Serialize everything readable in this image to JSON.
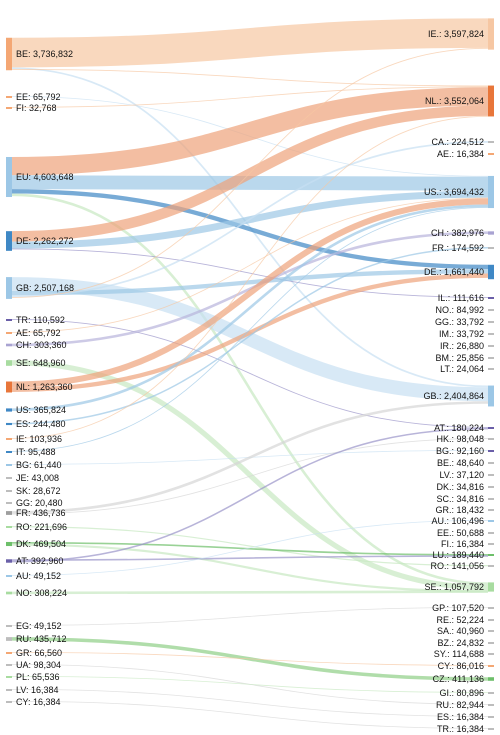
{
  "diagram": {
    "type": "sankey",
    "colors": {
      "orange": "#e8763a",
      "blue": "#3f88c5",
      "lightblue": "#9cc7e6",
      "green": "#6dbf6a",
      "purple": "#6a5fa8",
      "gray": "#bdbdbd",
      "peach": "#f6c7a3"
    },
    "sources": [
      {
        "id": "BE",
        "label": "BE: 3,736,832",
        "value": 3736832,
        "color": "#f4a774"
      },
      {
        "id": "EE",
        "label": "EE: 65,792",
        "value": 65792,
        "color": "#f4a774"
      },
      {
        "id": "FI",
        "label": "FI: 32,768",
        "value": 32768,
        "color": "#f4a774"
      },
      {
        "id": "EU",
        "label": "EU: 4,603,648",
        "value": 4603648,
        "color": "#9cc7e6"
      },
      {
        "id": "DE",
        "label": "DE: 2,262,272",
        "value": 2262272,
        "color": "#3f88c5"
      },
      {
        "id": "GB",
        "label": "GB: 2,507,168",
        "value": 2507168,
        "color": "#9cc7e6"
      },
      {
        "id": "TR",
        "label": "TR: 110,592",
        "value": 110592,
        "color": "#6a5fa8"
      },
      {
        "id": "AE",
        "label": "AE: 65,792",
        "value": 65792,
        "color": "#f4a774"
      },
      {
        "id": "CH",
        "label": "CH: 303,360",
        "value": 303360,
        "color": "#a9a3d2"
      },
      {
        "id": "SE",
        "label": "SE: 648,960",
        "value": 648960,
        "color": "#a8dca0"
      },
      {
        "id": "NL",
        "label": "NL: 1,263,360",
        "value": 1263360,
        "color": "#e8763a"
      },
      {
        "id": "US",
        "label": "US: 365,824",
        "value": 365824,
        "color": "#3f88c5"
      },
      {
        "id": "ES",
        "label": "ES: 244,480",
        "value": 244480,
        "color": "#3f88c5"
      },
      {
        "id": "IE",
        "label": "IE: 103,936",
        "value": 103936,
        "color": "#f4a774"
      },
      {
        "id": "IT",
        "label": "IT: 95,488",
        "value": 95488,
        "color": "#3f88c5"
      },
      {
        "id": "BG",
        "label": "BG: 61,440",
        "value": 61440,
        "color": "#9cc7e6"
      },
      {
        "id": "JE",
        "label": "JE: 43,008",
        "value": 43008,
        "color": "#bdbdbd"
      },
      {
        "id": "SK",
        "label": "SK: 28,672",
        "value": 28672,
        "color": "#bdbdbd"
      },
      {
        "id": "GG",
        "label": "GG: 20,480",
        "value": 20480,
        "color": "#bdbdbd"
      },
      {
        "id": "FR",
        "label": "FR: 436,736",
        "value": 436736,
        "color": "#9e9e9e"
      },
      {
        "id": "RO",
        "label": "RO: 221,696",
        "value": 221696,
        "color": "#a8dca0"
      },
      {
        "id": "DK",
        "label": "DK: 469,504",
        "value": 469504,
        "color": "#6dbf6a"
      },
      {
        "id": "AT",
        "label": "AT: 392,960",
        "value": 392960,
        "color": "#6a5fa8"
      },
      {
        "id": "AU",
        "label": "AU: 49,152",
        "value": 49152,
        "color": "#9cc7e6"
      },
      {
        "id": "NO",
        "label": "NO: 308,224",
        "value": 308224,
        "color": "#a8dca0"
      },
      {
        "id": "EG",
        "label": "EG: 49,152",
        "value": 49152,
        "color": "#bdbdbd"
      },
      {
        "id": "RU",
        "label": "RU: 435,712",
        "value": 435712,
        "color": "#bdbdbd"
      },
      {
        "id": "GR",
        "label": "GR: 66,560",
        "value": 66560,
        "color": "#f4a774"
      },
      {
        "id": "UA",
        "label": "UA: 98,304",
        "value": 98304,
        "color": "#bdbdbd"
      },
      {
        "id": "PL",
        "label": "PL: 65,536",
        "value": 65536,
        "color": "#a8dca0"
      },
      {
        "id": "LV",
        "label": "LV: 16,384",
        "value": 16384,
        "color": "#bdbdbd"
      },
      {
        "id": "CY",
        "label": "CY: 16,384",
        "value": 16384,
        "color": "#bdbdbd"
      }
    ],
    "targets": [
      {
        "id": "IE",
        "label": "IE.: 3,597,824",
        "value": 3597824,
        "color": "#f6c7a3"
      },
      {
        "id": "NL",
        "label": "NL.: 3,552,064",
        "value": 3552064,
        "color": "#e8763a"
      },
      {
        "id": "CA",
        "label": "CA.: 224,512",
        "value": 224512,
        "color": "#bdbdbd"
      },
      {
        "id": "AE",
        "label": "AE.: 16,384",
        "value": 16384,
        "color": "#f4a774"
      },
      {
        "id": "US",
        "label": "US.: 3,694,432",
        "value": 3694432,
        "color": "#9cc7e6"
      },
      {
        "id": "CH",
        "label": "CH.: 382,976",
        "value": 382976,
        "color": "#a9a3d2"
      },
      {
        "id": "FR",
        "label": "FR.: 174,592",
        "value": 174592,
        "color": "#bdbdbd"
      },
      {
        "id": "DE",
        "label": "DE.: 1,661,440",
        "value": 1661440,
        "color": "#3f88c5"
      },
      {
        "id": "IL",
        "label": "IL.: 111,616",
        "value": 111616,
        "color": "#6a5fa8"
      },
      {
        "id": "NO",
        "label": "NO.: 84,992",
        "value": 84992,
        "color": "#bdbdbd"
      },
      {
        "id": "GG",
        "label": "GG.: 33,792",
        "value": 33792,
        "color": "#bdbdbd"
      },
      {
        "id": "IM",
        "label": "IM.: 33,792",
        "value": 33792,
        "color": "#bdbdbd"
      },
      {
        "id": "IR",
        "label": "IR.: 26,880",
        "value": 26880,
        "color": "#bdbdbd"
      },
      {
        "id": "BM",
        "label": "BM.: 25,856",
        "value": 25856,
        "color": "#bdbdbd"
      },
      {
        "id": "LT",
        "label": "LT.: 24,064",
        "value": 24064,
        "color": "#bdbdbd"
      },
      {
        "id": "GB",
        "label": "GB.: 2,404,864",
        "value": 2404864,
        "color": "#9cc7e6"
      },
      {
        "id": "AT",
        "label": "AT.: 180,224",
        "value": 180224,
        "color": "#6a5fa8"
      },
      {
        "id": "HK",
        "label": "HK.: 98,048",
        "value": 98048,
        "color": "#bdbdbd"
      },
      {
        "id": "BG",
        "label": "BG.: 92,160",
        "value": 92160,
        "color": "#6a5fa8"
      },
      {
        "id": "BE",
        "label": "BE.: 48,640",
        "value": 48640,
        "color": "#bdbdbd"
      },
      {
        "id": "LV",
        "label": "LV.: 37,120",
        "value": 37120,
        "color": "#bdbdbd"
      },
      {
        "id": "DK",
        "label": "DK.: 34,816",
        "value": 34816,
        "color": "#bdbdbd"
      },
      {
        "id": "SC",
        "label": "SC.: 34,816",
        "value": 34816,
        "color": "#bdbdbd"
      },
      {
        "id": "GR",
        "label": "GR.: 18,432",
        "value": 18432,
        "color": "#bdbdbd"
      },
      {
        "id": "AU",
        "label": "AU.: 106,496",
        "value": 106496,
        "color": "#9cc7e6"
      },
      {
        "id": "EE",
        "label": "EE.: 50,688",
        "value": 50688,
        "color": "#bdbdbd"
      },
      {
        "id": "FI",
        "label": "FI.: 16,384",
        "value": 16384,
        "color": "#bdbdbd"
      },
      {
        "id": "LU",
        "label": "LU.: 189,440",
        "value": 189440,
        "color": "#6dbf6a"
      },
      {
        "id": "RO",
        "label": "RO.: 141,056",
        "value": 141056,
        "color": "#bdbdbd"
      },
      {
        "id": "SE",
        "label": "SE.: 1,057,792",
        "value": 1057792,
        "color": "#a8dca0"
      },
      {
        "id": "GP",
        "label": "GP.: 107,520",
        "value": 107520,
        "color": "#bdbdbd"
      },
      {
        "id": "RE",
        "label": "RE.: 52,224",
        "value": 52224,
        "color": "#bdbdbd"
      },
      {
        "id": "SA",
        "label": "SA.: 40,960",
        "value": 40960,
        "color": "#bdbdbd"
      },
      {
        "id": "BZ",
        "label": "BZ.: 24,832",
        "value": 24832,
        "color": "#bdbdbd"
      },
      {
        "id": "SY",
        "label": "SY.: 114,688",
        "value": 114688,
        "color": "#bdbdbd"
      },
      {
        "id": "CY",
        "label": "CY.: 86,016",
        "value": 86016,
        "color": "#f4a774"
      },
      {
        "id": "CZ",
        "label": "CZ.: 411,136",
        "value": 411136,
        "color": "#6dbf6a"
      },
      {
        "id": "GI",
        "label": "GI.: 80,896",
        "value": 80896,
        "color": "#bdbdbd"
      },
      {
        "id": "RU",
        "label": "RU.: 82,944",
        "value": 82944,
        "color": "#bdbdbd"
      },
      {
        "id": "ES",
        "label": "ES.: 16,384",
        "value": 16384,
        "color": "#bdbdbd"
      },
      {
        "id": "TR",
        "label": "TR.: 16,384",
        "value": 16384,
        "color": "#bdbdbd"
      }
    ],
    "links": [
      {
        "source": "BE",
        "target": "IE",
        "value": 3400000,
        "color": "#f6c7a3"
      },
      {
        "source": "BE",
        "target": "GB",
        "value": 200000,
        "color": "#c8e0f2"
      },
      {
        "source": "BE",
        "target": "NL",
        "value": 100000,
        "color": "#f6c7a3"
      },
      {
        "source": "EE",
        "target": "US",
        "value": 50000,
        "color": "#c8e0f2"
      },
      {
        "source": "FI",
        "target": "NL",
        "value": 30000,
        "color": "#f6c7a3"
      },
      {
        "source": "EU",
        "target": "NL",
        "value": 2100000,
        "color": "#eea27a"
      },
      {
        "source": "EU",
        "target": "US",
        "value": 1600000,
        "color": "#9cc7e6"
      },
      {
        "source": "EU",
        "target": "DE",
        "value": 500000,
        "color": "#3f88c5"
      },
      {
        "source": "EU",
        "target": "SE",
        "value": 300000,
        "color": "#c8e8c2"
      },
      {
        "source": "DE",
        "target": "NL",
        "value": 1200000,
        "color": "#eea27a"
      },
      {
        "source": "DE",
        "target": "US",
        "value": 800000,
        "color": "#9cc7e6"
      },
      {
        "source": "DE",
        "target": "IL",
        "value": 100000,
        "color": "#9a94c9"
      },
      {
        "source": "GB",
        "target": "GB",
        "value": 1600000,
        "color": "#c8e0f2"
      },
      {
        "source": "GB",
        "target": "DE",
        "value": 500000,
        "color": "#9cc7e6"
      },
      {
        "source": "GB",
        "target": "CA",
        "value": 200000,
        "color": "#c8e0f2"
      },
      {
        "source": "GB",
        "target": "IE",
        "value": 100000,
        "color": "#f6c7a3"
      },
      {
        "source": "TR",
        "target": "AT",
        "value": 100000,
        "color": "#9a94c9"
      },
      {
        "source": "AE",
        "target": "US",
        "value": 60000,
        "color": "#f6c7a3"
      },
      {
        "source": "CH",
        "target": "CH",
        "value": 300000,
        "color": "#b8b3dc"
      },
      {
        "source": "SE",
        "target": "SE",
        "value": 600000,
        "color": "#c8e8c2"
      },
      {
        "source": "NL",
        "target": "US",
        "value": 700000,
        "color": "#eea27a"
      },
      {
        "source": "NL",
        "target": "DE",
        "value": 500000,
        "color": "#eea27a"
      },
      {
        "source": "US",
        "target": "US",
        "value": 300000,
        "color": "#9cc7e6"
      },
      {
        "source": "ES",
        "target": "FR",
        "value": 170000,
        "color": "#9cc7e6"
      },
      {
        "source": "IE",
        "target": "NL",
        "value": 100000,
        "color": "#f6c7a3"
      },
      {
        "source": "IT",
        "target": "US",
        "value": 90000,
        "color": "#9cc7e6"
      },
      {
        "source": "BG",
        "target": "BG",
        "value": 60000,
        "color": "#c8e0f2"
      },
      {
        "source": "FR",
        "target": "GB",
        "value": 300000,
        "color": "#d6d6d6"
      },
      {
        "source": "FR",
        "target": "HK",
        "value": 98000,
        "color": "#d6d6d6"
      },
      {
        "source": "RO",
        "target": "RO",
        "value": 140000,
        "color": "#c8e8c2"
      },
      {
        "source": "DK",
        "target": "LU",
        "value": 189000,
        "color": "#6dbf6a"
      },
      {
        "source": "DK",
        "target": "SE",
        "value": 250000,
        "color": "#c8e8c2"
      },
      {
        "source": "AT",
        "target": "LU",
        "value": 180000,
        "color": "#9a94c9"
      },
      {
        "source": "AT",
        "target": "AT",
        "value": 180000,
        "color": "#9a94c9"
      },
      {
        "source": "AU",
        "target": "AU",
        "value": 49000,
        "color": "#c8e0f2"
      },
      {
        "source": "NO",
        "target": "SE",
        "value": 300000,
        "color": "#c8e8c2"
      },
      {
        "source": "EG",
        "target": "GP",
        "value": 49000,
        "color": "#d6d6d6"
      },
      {
        "source": "RU",
        "target": "CZ",
        "value": 411000,
        "color": "#8fcf86"
      },
      {
        "source": "GR",
        "target": "CY",
        "value": 66000,
        "color": "#f6c7a3"
      },
      {
        "source": "UA",
        "target": "RU",
        "value": 82000,
        "color": "#d6d6d6"
      },
      {
        "source": "PL",
        "target": "GI",
        "value": 65000,
        "color": "#c8e8c2"
      },
      {
        "source": "LV",
        "target": "ES",
        "value": 16000,
        "color": "#d6d6d6"
      },
      {
        "source": "CY",
        "target": "TR",
        "value": 16000,
        "color": "#d6d6d6"
      }
    ]
  }
}
